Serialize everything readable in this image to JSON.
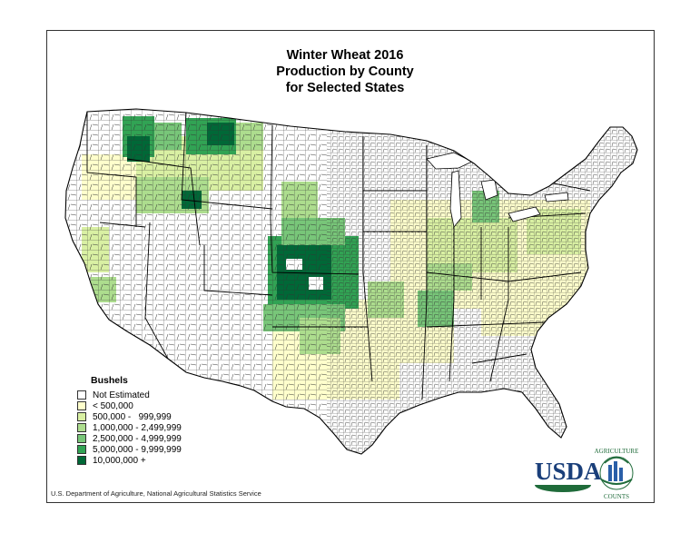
{
  "title": {
    "line1": "Winter Wheat 2016",
    "line2": "Production by County",
    "line3": "for Selected States"
  },
  "legend": {
    "title": "Bushels",
    "items": [
      {
        "label": "Not Estimated",
        "color": "#ffffff"
      },
      {
        "label": "< 500,000",
        "color": "#ffffcc"
      },
      {
        "label": "500,000 -   999,999",
        "color": "#d9f0a3"
      },
      {
        "label": "1,000,000 - 2,499,999",
        "color": "#addd8e"
      },
      {
        "label": "2,500,000 - 4,999,999",
        "color": "#78c679"
      },
      {
        "label": "5,000,000 - 9,999,999",
        "color": "#31a354"
      },
      {
        "label": "10,000,000 +",
        "color": "#006837"
      }
    ]
  },
  "footer": "U.S. Department of Agriculture, National Agricultural Statistics Service",
  "logos": {
    "usda": "USDA",
    "ag_counts_top": "AGRICULTURE",
    "ag_counts_bottom": "COUNTS"
  }
}
